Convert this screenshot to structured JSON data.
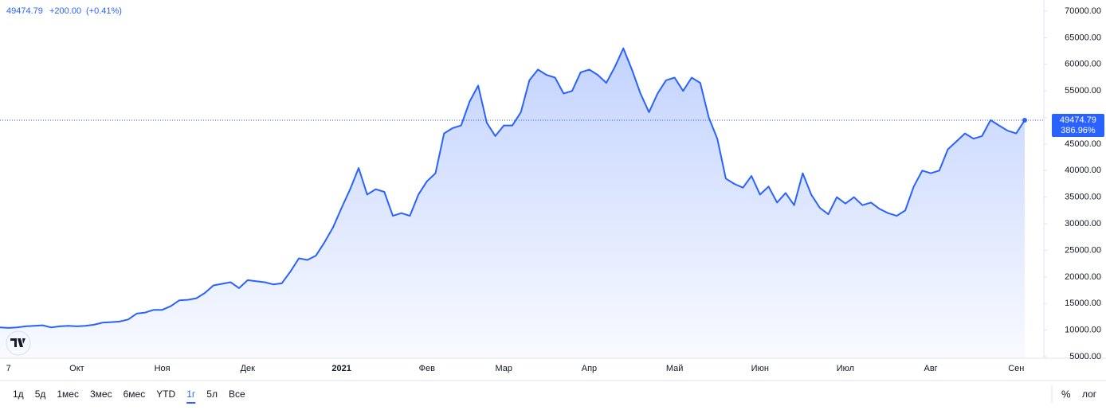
{
  "header": {
    "price": "49474.79",
    "change": "+200.00",
    "change_pct": "(+0.41%)"
  },
  "last_label": {
    "price": "49474.79",
    "change": "386.96%"
  },
  "chart_data": {
    "type": "area",
    "color": "#2962ff",
    "categories": [
      null,
      "7",
      null,
      null,
      null,
      null,
      null,
      null,
      null,
      "Окт",
      null,
      null,
      null,
      null,
      null,
      null,
      null,
      null,
      null,
      "Ноя",
      null,
      null,
      null,
      null,
      null,
      null,
      null,
      null,
      null,
      "Дек",
      null,
      null,
      null,
      null,
      null,
      null,
      null,
      null,
      null,
      null,
      "2021",
      null,
      null,
      null,
      null,
      null,
      null,
      null,
      null,
      null,
      "Фев",
      null,
      null,
      null,
      null,
      null,
      null,
      null,
      null,
      "Мар",
      null,
      null,
      null,
      null,
      null,
      null,
      null,
      null,
      null,
      "Апр",
      null,
      null,
      null,
      null,
      null,
      null,
      null,
      null,
      null,
      "Май",
      null,
      null,
      null,
      null,
      null,
      null,
      null,
      null,
      null,
      "Июн",
      null,
      null,
      null,
      null,
      null,
      null,
      null,
      null,
      null,
      "Июл",
      null,
      null,
      null,
      null,
      null,
      null,
      null,
      null,
      null,
      "Авг",
      null,
      null,
      null,
      null,
      null,
      null,
      null,
      null,
      null,
      "Сен",
      null
    ],
    "values": [
      10500,
      10400,
      10500,
      10700,
      10800,
      10900,
      10500,
      10700,
      10800,
      10700,
      10800,
      11000,
      11400,
      11500,
      11600,
      12000,
      13100,
      13300,
      13800,
      13800,
      14500,
      15600,
      15700,
      16000,
      17000,
      18400,
      18700,
      19000,
      17900,
      19400,
      19200,
      19000,
      18600,
      18800,
      21000,
      23500,
      23200,
      24000,
      26500,
      29300,
      33000,
      36500,
      40500,
      35500,
      36500,
      36000,
      31500,
      32000,
      31500,
      35500,
      38000,
      39500,
      47000,
      48000,
      48500,
      53000,
      56000,
      49000,
      46500,
      48500,
      48500,
      51000,
      57000,
      59000,
      58000,
      57500,
      54500,
      55000,
      58500,
      59000,
      58000,
      56500,
      59500,
      63000,
      59000,
      54500,
      51000,
      54500,
      57000,
      57500,
      55000,
      57500,
      56500,
      50000,
      46000,
      38500,
      37500,
      36800,
      39000,
      35500,
      37000,
      34000,
      35800,
      33500,
      39500,
      35500,
      33000,
      31800,
      35000,
      33800,
      35000,
      33500,
      34000,
      32800,
      32000,
      31500,
      32500,
      37000,
      40000,
      39500,
      40000,
      44000,
      45500,
      47000,
      46000,
      46500,
      49500,
      48500,
      47500,
      47000,
      49474.79
    ],
    "ylim": [
      5000,
      70000
    ],
    "yticks": [
      {
        "value": 5000,
        "label": "5000.00"
      },
      {
        "value": 10000,
        "label": "10000.00"
      },
      {
        "value": 15000,
        "label": "15000.00"
      },
      {
        "value": 20000,
        "label": "20000.00"
      },
      {
        "value": 25000,
        "label": "25000.00"
      },
      {
        "value": 30000,
        "label": "30000.00"
      },
      {
        "value": 35000,
        "label": "35000.00"
      },
      {
        "value": 40000,
        "label": "40000.00"
      },
      {
        "value": 45000,
        "label": "45000.00"
      },
      {
        "value": 50000,
        "label": "50000.00"
      },
      {
        "value": 55000,
        "label": "55000.00"
      },
      {
        "value": 60000,
        "label": "60000.00"
      },
      {
        "value": 65000,
        "label": "65000.00"
      },
      {
        "value": 70000,
        "label": "70000.00"
      }
    ]
  },
  "toolbar": {
    "ranges": [
      "1д",
      "5д",
      "1мес",
      "3мес",
      "6мес",
      "YTD",
      "1г",
      "5л",
      "Все"
    ],
    "active_range": "1г",
    "percent": "%",
    "log": "лог"
  }
}
